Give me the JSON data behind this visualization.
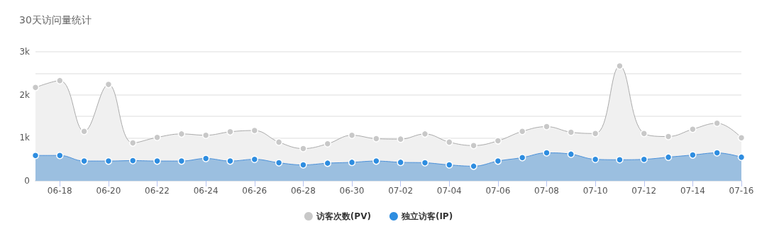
{
  "chart_data": {
    "type": "area",
    "title": "30天访问量统计",
    "categories": [
      null,
      "06-18",
      null,
      "06-20",
      null,
      "06-22",
      null,
      "06-24",
      null,
      "06-26",
      null,
      "06-28",
      null,
      "06-30",
      null,
      "07-02",
      null,
      "07-04",
      null,
      "07-06",
      null,
      "07-08",
      null,
      "07-10",
      null,
      "07-12",
      null,
      "07-14",
      null,
      "07-16"
    ],
    "series": [
      {
        "name": "访客次数(PV)",
        "color": "#c8c8c8",
        "values": [
          2170,
          2330,
          1150,
          2240,
          880,
          1010,
          1090,
          1060,
          1140,
          1170,
          900,
          750,
          860,
          1060,
          980,
          970,
          1090,
          900,
          820,
          930,
          1150,
          1260,
          1130,
          1100,
          2670,
          1100,
          1030,
          1200,
          1340,
          1000
        ]
      },
      {
        "name": "独立访客(IP)",
        "color": "#2e8de0",
        "values": [
          590,
          590,
          460,
          460,
          470,
          460,
          460,
          520,
          460,
          500,
          420,
          370,
          410,
          430,
          460,
          430,
          420,
          370,
          340,
          460,
          540,
          650,
          620,
          500,
          490,
          500,
          550,
          600,
          650,
          550
        ]
      }
    ],
    "ylim": [
      0,
      3000
    ],
    "yticks": [
      {
        "value": 0,
        "label": "0"
      },
      {
        "value": 1000,
        "label": "1k"
      },
      {
        "value": 2000,
        "label": "2k"
      },
      {
        "value": 3000,
        "label": "3k"
      }
    ],
    "grid": "y",
    "legend": "bottom",
    "marker": "circle",
    "line_style": "solid"
  }
}
